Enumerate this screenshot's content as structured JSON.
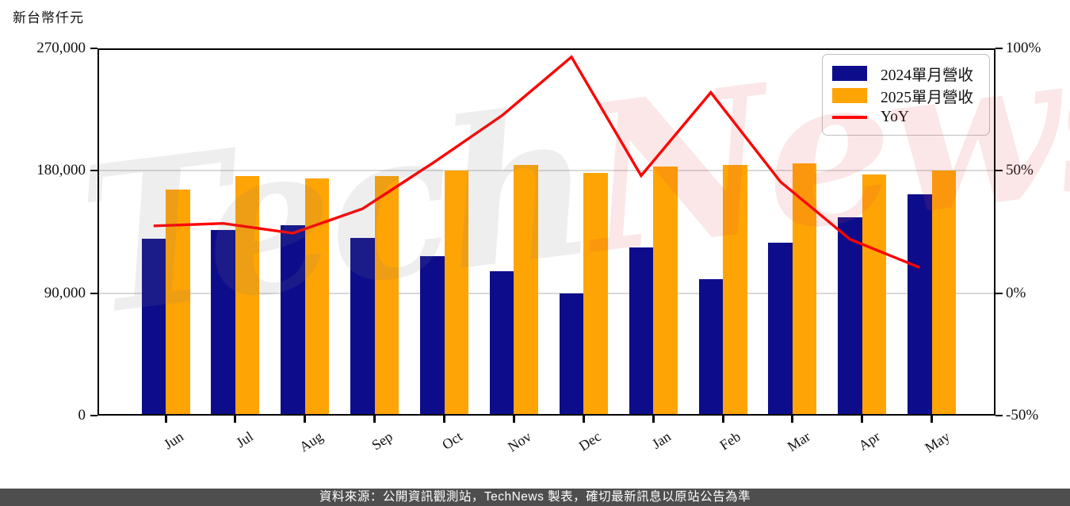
{
  "unit_label": "新台幣仟元",
  "watermark": {
    "part1": "Tech",
    "part2": "News"
  },
  "footer": {
    "text": "資料來源：公開資訊觀測站，TechNews 製表，確切最新訊息以原站公告為準",
    "bg": "#4e4e4e",
    "text_color": "#ffffff"
  },
  "chart_data": {
    "type": "bar",
    "subtype": "grouped-bars-with-line",
    "title": "",
    "categories": [
      "Jun",
      "Jul",
      "Aug",
      "Sep",
      "Oct",
      "Nov",
      "Dec",
      "Jan",
      "Feb",
      "Mar",
      "Apr",
      "May"
    ],
    "series": [
      {
        "name": "2024單月營收",
        "type": "bar",
        "axis": "left",
        "color": "#0d0d8c",
        "values": [
          130000,
          136500,
          140000,
          130500,
          117500,
          106000,
          90000,
          123500,
          100500,
          127000,
          146000,
          163000
        ]
      },
      {
        "name": "2025單月營收",
        "type": "bar",
        "axis": "left",
        "color": "#ffa405",
        "values": [
          166000,
          176000,
          174500,
          176000,
          180000,
          184000,
          178500,
          183000,
          184000,
          185500,
          177500,
          180000
        ]
      },
      {
        "name": "YoY",
        "type": "line",
        "axis": "right",
        "color": "#ff0000",
        "values_pct": [
          27.5,
          28.5,
          24.5,
          34.5,
          53,
          72.5,
          96.5,
          48,
          82,
          45.5,
          22,
          10.5
        ]
      }
    ],
    "left_axis": {
      "title": "新台幣仟元",
      "min": 0,
      "max": 270000,
      "tick_values": [
        0,
        90000,
        180000,
        270000
      ],
      "tick_labels": [
        "0",
        "90,000",
        "180,000",
        "270,000"
      ]
    },
    "right_axis": {
      "min": -50,
      "max": 100,
      "tick_values": [
        -50,
        0,
        50,
        100
      ],
      "tick_labels": [
        "-50%",
        "0%",
        "50%",
        "100%"
      ]
    },
    "grid": {
      "horizontal_at": [
        90000,
        180000
      ],
      "color": "#d9d9d9"
    },
    "legend": {
      "position": "top-right"
    }
  }
}
